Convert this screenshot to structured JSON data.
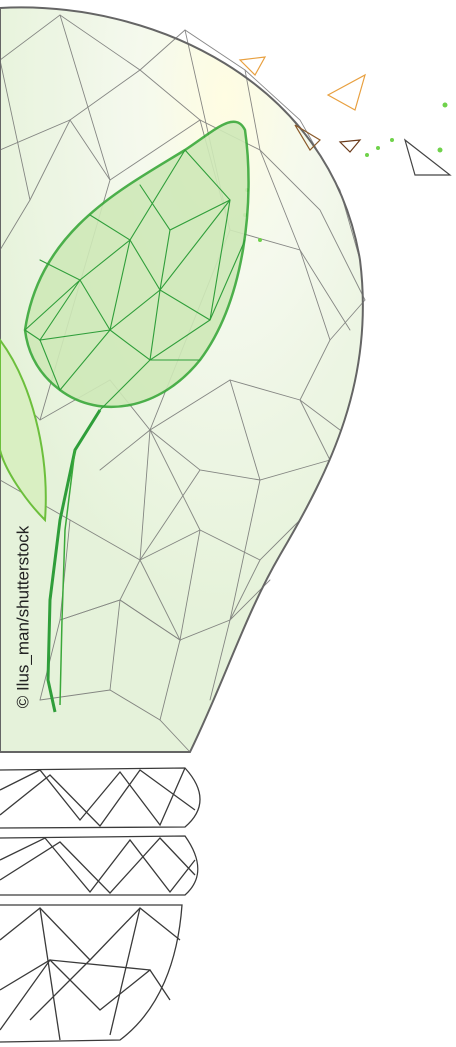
{
  "credit": "© Ilus_man/shutterstock"
}
